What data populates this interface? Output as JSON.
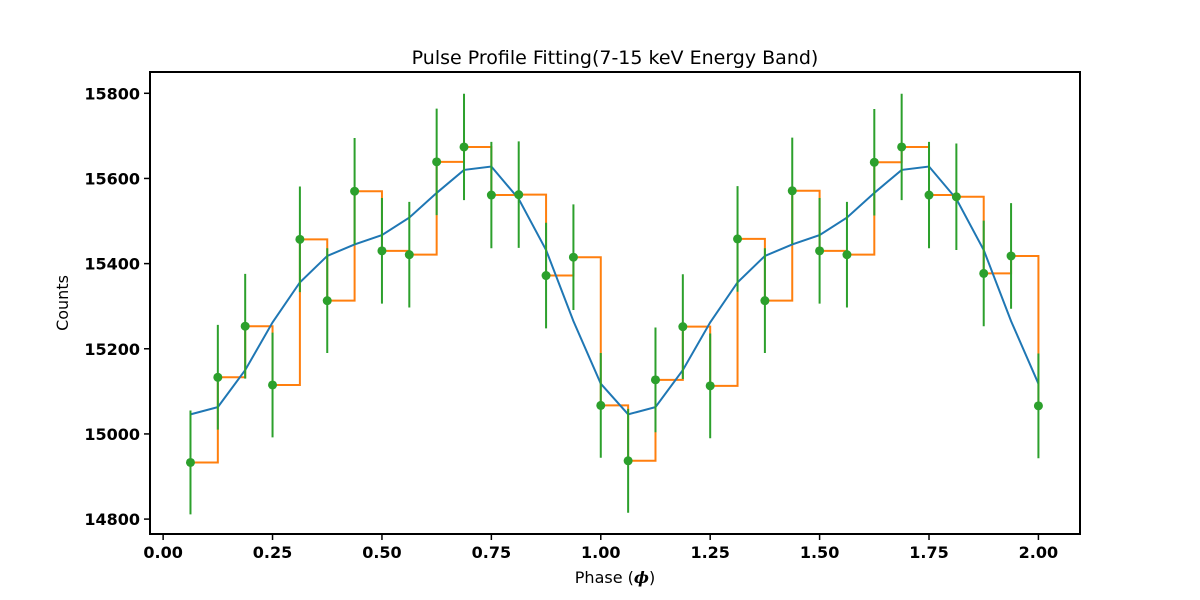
{
  "chart_data": {
    "type": "line",
    "title": "Pulse Profile Fitting(7-15 keV Energy Band)",
    "xlabel": "Phase (",
    "xlabel_symbol": "ϕ",
    "xlabel_close": ")",
    "ylabel": "Counts",
    "xlim": [
      -0.03,
      2.095
    ],
    "ylim": [
      14765,
      15850
    ],
    "xticks": [
      0.0,
      0.25,
      0.5,
      0.75,
      1.0,
      1.25,
      1.5,
      1.75,
      2.0
    ],
    "xtick_labels": [
      "0.00",
      "0.25",
      "0.50",
      "0.75",
      "1.00",
      "1.25",
      "1.50",
      "1.75",
      "2.00"
    ],
    "yticks": [
      14800,
      15000,
      15200,
      15400,
      15600,
      15800
    ],
    "ytick_labels": [
      "14800",
      "15000",
      "15200",
      "15400",
      "15600",
      "15800"
    ],
    "grid": false,
    "colors": {
      "model": "#1f77b4",
      "step": "#ff7f0e",
      "data": "#2ca02c"
    },
    "series": [
      {
        "kind": "errorbar",
        "x": [
          0.0625,
          0.125,
          0.1875,
          0.25,
          0.3125,
          0.375,
          0.4375,
          0.5,
          0.5625,
          0.625,
          0.6875,
          0.75,
          0.8125,
          0.875,
          0.9375,
          1.0,
          1.0625,
          1.125,
          1.1875,
          1.25,
          1.3125,
          1.375,
          1.4375,
          1.5,
          1.5625,
          1.625,
          1.6875,
          1.75,
          1.8125,
          1.875,
          1.9375,
          2.0
        ],
        "y": [
          14933,
          15133,
          15253,
          15115,
          15457,
          15313,
          15570,
          15430,
          15421,
          15639,
          15674,
          15561,
          15562,
          15372,
          15415,
          15067,
          14937,
          15127,
          15252,
          15113,
          15458,
          15313,
          15571,
          15430,
          15421,
          15638,
          15674,
          15561,
          15557,
          15377,
          15418,
          15066
        ],
        "yerr": [
          122,
          123,
          123,
          123,
          124,
          123,
          125,
          124,
          124,
          125,
          125,
          125,
          125,
          124,
          124,
          123,
          122,
          123,
          123,
          123,
          124,
          123,
          125,
          124,
          124,
          125,
          125,
          125,
          125,
          124,
          124,
          123
        ]
      },
      {
        "kind": "step",
        "x": [
          0.0625,
          0.125,
          0.1875,
          0.25,
          0.3125,
          0.375,
          0.4375,
          0.5,
          0.5625,
          0.625,
          0.6875,
          0.75,
          0.8125,
          0.875,
          0.9375,
          1.0,
          1.0625,
          1.125,
          1.1875,
          1.25,
          1.3125,
          1.375,
          1.4375,
          1.5,
          1.5625,
          1.625,
          1.6875,
          1.75,
          1.8125,
          1.875,
          1.9375,
          2.0
        ],
        "y": [
          14933,
          15133,
          15253,
          15115,
          15457,
          15313,
          15570,
          15430,
          15421,
          15639,
          15674,
          15561,
          15562,
          15372,
          15415,
          15067,
          14937,
          15127,
          15252,
          15113,
          15458,
          15313,
          15571,
          15430,
          15421,
          15638,
          15674,
          15561,
          15557,
          15377,
          15418,
          15066
        ]
      },
      {
        "kind": "line",
        "x": [
          0.0625,
          0.125,
          0.1875,
          0.25,
          0.3125,
          0.375,
          0.4375,
          0.5,
          0.5625,
          0.625,
          0.6875,
          0.75,
          0.8125,
          0.875,
          0.9375,
          1.0,
          1.0625,
          1.125,
          1.1875,
          1.25,
          1.3125,
          1.375,
          1.4375,
          1.5,
          1.5625,
          1.625,
          1.6875,
          1.75,
          1.8125,
          1.875,
          1.9375,
          2.0
        ],
        "y": [
          15046,
          15063,
          15150,
          15262,
          15356,
          15418,
          15445,
          15467,
          15508,
          15566,
          15620,
          15628,
          15552,
          15432,
          15265,
          15118,
          15046,
          15063,
          15150,
          15262,
          15356,
          15418,
          15445,
          15467,
          15508,
          15566,
          15620,
          15628,
          15552,
          15432,
          15265,
          15118
        ]
      }
    ]
  }
}
